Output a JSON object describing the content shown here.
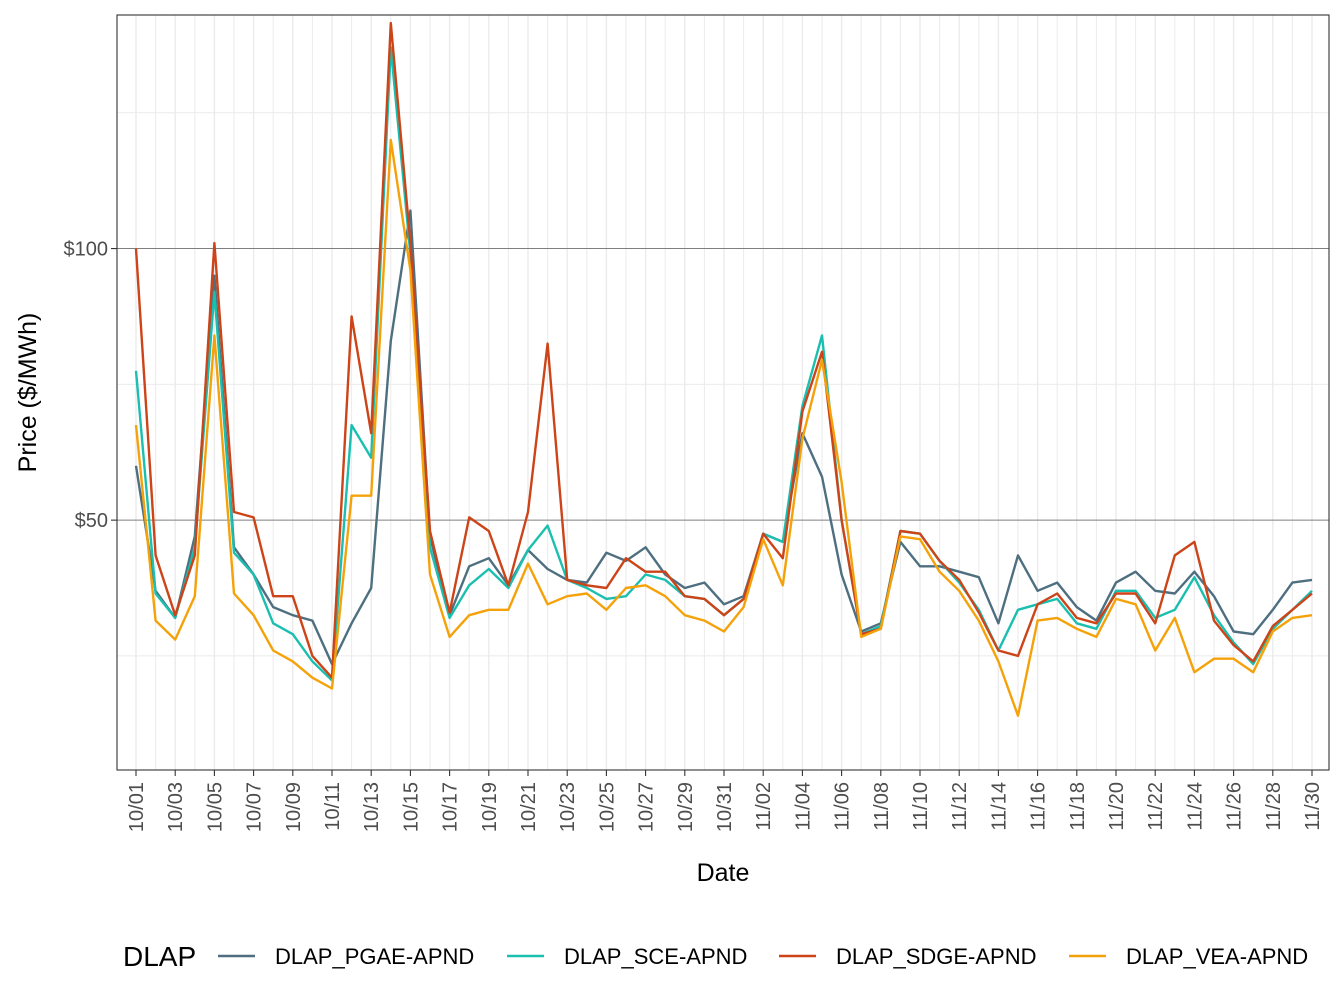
{
  "chart_data": {
    "type": "line",
    "xlabel": "Date",
    "ylabel": "Price ($/MWh)",
    "ylim": [
      4,
      143
    ],
    "y_ticks": [
      {
        "value": 50,
        "label": "$50"
      },
      {
        "value": 100,
        "label": "$100"
      }
    ],
    "y_minor_gridlines": [
      25,
      75,
      125
    ],
    "grid": true,
    "legend_title": "DLAP",
    "legend_position": "bottom",
    "x": [
      "10/01",
      "10/02",
      "10/03",
      "10/04",
      "10/05",
      "10/06",
      "10/07",
      "10/08",
      "10/09",
      "10/10",
      "10/11",
      "10/12",
      "10/13",
      "10/14",
      "10/15",
      "10/16",
      "10/17",
      "10/18",
      "10/19",
      "10/20",
      "10/21",
      "10/22",
      "10/23",
      "10/24",
      "10/25",
      "10/26",
      "10/27",
      "10/28",
      "10/29",
      "10/30",
      "10/31",
      "11/01",
      "11/02",
      "11/03",
      "11/04",
      "11/05",
      "11/06",
      "11/07",
      "11/08",
      "11/09",
      "11/10",
      "11/11",
      "11/12",
      "11/13",
      "11/14",
      "11/15",
      "11/16",
      "11/17",
      "11/18",
      "11/19",
      "11/20",
      "11/21",
      "11/22",
      "11/23",
      "11/24",
      "11/25",
      "11/26",
      "11/27",
      "11/28",
      "11/29",
      "11/30"
    ],
    "x_tick_labels": [
      "10/01",
      "10/03",
      "10/05",
      "10/07",
      "10/09",
      "10/11",
      "10/13",
      "10/15",
      "10/17",
      "10/19",
      "10/21",
      "10/23",
      "10/25",
      "10/27",
      "10/29",
      "10/31",
      "11/02",
      "11/04",
      "11/06",
      "11/08",
      "11/10",
      "11/12",
      "11/14",
      "11/16",
      "11/18",
      "11/20",
      "11/22",
      "11/24",
      "11/26",
      "11/28",
      "11/30"
    ],
    "series": [
      {
        "name": "DLAP_PGAE-APND",
        "color": "#4e6f80",
        "values": [
          60,
          37,
          32,
          47,
          95,
          45,
          40,
          34,
          32.5,
          31.5,
          23.5,
          31,
          37.5,
          83,
          107,
          47,
          32.5,
          41.5,
          43,
          38,
          44.5,
          41,
          39,
          38.5,
          44,
          42.5,
          45,
          40,
          37.5,
          38.5,
          34.5,
          36,
          47.5,
          46,
          66,
          58,
          40,
          29.5,
          31,
          46,
          41.5,
          41.5,
          40.5,
          39.5,
          31,
          43.5,
          37,
          38.5,
          34,
          31.5,
          38.5,
          40.5,
          37,
          36.5,
          40.5,
          36,
          29.5,
          29,
          33.5,
          38.5,
          39
        ]
      },
      {
        "name": "DLAP_SCE-APND",
        "color": "#1abfb0",
        "values": [
          77.5,
          36.5,
          32,
          45,
          92,
          44,
          40,
          31,
          29,
          24,
          20.5,
          67.5,
          61.5,
          137,
          99,
          45,
          32,
          38,
          41,
          37.5,
          44.5,
          49,
          39,
          37.5,
          35.5,
          36,
          40,
          39,
          36,
          35.5,
          32.5,
          35.5,
          47.5,
          46,
          71,
          84,
          50,
          29,
          30.5,
          48,
          47.5,
          42.5,
          38.5,
          33.5,
          26,
          33.5,
          34.5,
          35.5,
          31,
          30,
          37,
          37,
          32,
          33.5,
          39.5,
          32.5,
          27.5,
          23.5,
          30,
          33.5,
          37
        ]
      },
      {
        "name": "DLAP_SDGE-APND",
        "color": "#cc4418",
        "values": [
          100,
          43.5,
          32.5,
          43.5,
          101,
          51.5,
          50.5,
          36,
          36,
          25,
          21,
          87.5,
          66,
          141.5,
          101,
          48,
          33,
          50.5,
          48,
          38,
          51.5,
          82.5,
          39,
          38,
          37.5,
          43,
          40.5,
          40.5,
          36,
          35.5,
          32.5,
          35.5,
          47.5,
          43,
          70,
          81,
          50,
          29,
          30,
          48,
          47.5,
          42.5,
          39,
          33,
          26,
          25,
          34.5,
          36.5,
          32,
          31,
          36.5,
          36.5,
          31,
          43.5,
          46,
          31.5,
          27,
          24,
          30.5,
          33.5,
          36.5
        ]
      },
      {
        "name": "DLAP_VEA-APND",
        "color": "#f5a20a",
        "values": [
          67.5,
          31.5,
          28,
          36,
          84,
          36.5,
          32.5,
          26,
          24,
          21,
          19,
          54.5,
          54.5,
          120,
          96,
          40,
          28.5,
          32.5,
          33.5,
          33.5,
          42,
          34.5,
          36,
          36.5,
          33.5,
          37.5,
          38,
          36,
          32.5,
          31.5,
          29.5,
          34,
          46.5,
          38,
          65,
          79.5,
          57,
          28.5,
          30,
          47,
          46.5,
          40.5,
          37,
          31.5,
          24,
          14,
          31.5,
          32,
          30,
          28.5,
          35.5,
          34.5,
          26,
          32,
          22,
          24.5,
          24.5,
          22,
          29.5,
          32,
          32.5
        ]
      }
    ]
  }
}
